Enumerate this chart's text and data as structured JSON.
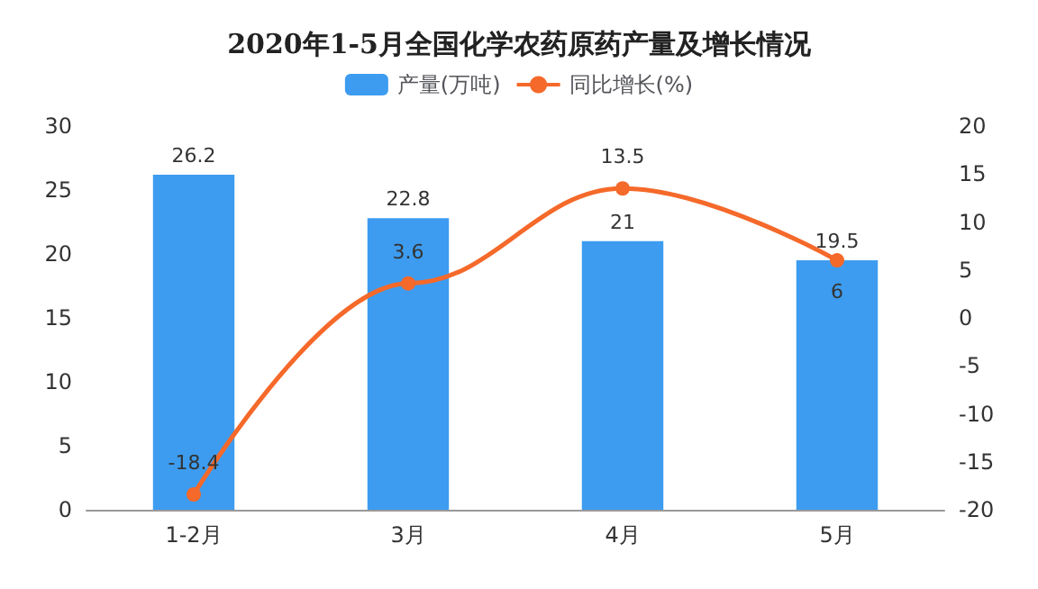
{
  "chart_data": {
    "type": "bar",
    "title": "2020年1-5月全国化学农药原药产量及增长情况",
    "categories": [
      "1-2月",
      "3月",
      "4月",
      "5月"
    ],
    "series": [
      {
        "name": "产量(万吨)",
        "color": "#3d9cf0",
        "values": [
          26.2,
          22.8,
          21,
          19.5
        ]
      },
      {
        "name": "同比增长(%)",
        "type": "line",
        "axis": "y2",
        "color": "#f5692a",
        "values": [
          -18.4,
          3.6,
          13.5,
          6
        ]
      }
    ],
    "ylim": [
      0,
      30
    ],
    "yticks": [
      0,
      5,
      10,
      15,
      20,
      25,
      30
    ],
    "y2lim": [
      -20,
      20
    ],
    "y2ticks": [
      -20,
      -15,
      -10,
      -5,
      0,
      5,
      10,
      15,
      20
    ],
    "data_labels": true,
    "legend": "top",
    "grid": false,
    "marker": "circle"
  }
}
